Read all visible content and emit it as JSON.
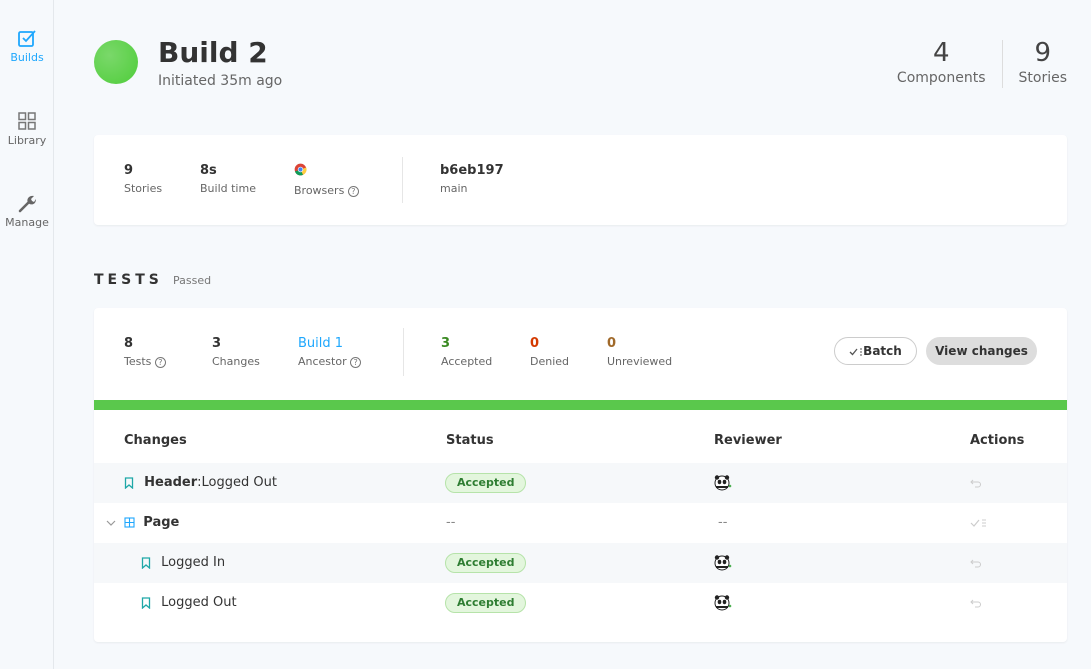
{
  "sidebar": {
    "items": [
      {
        "label": "Builds",
        "icon": "checkbox-icon",
        "active": true
      },
      {
        "label": "Library",
        "icon": "grid-icon",
        "active": false
      },
      {
        "label": "Manage",
        "icon": "wrench-icon",
        "active": false
      }
    ]
  },
  "header": {
    "title": "Build 2",
    "subtitle": "Initiated 35m ago",
    "components_count": "4",
    "components_label": "Components",
    "stories_count": "9",
    "stories_label": "Stories",
    "status_color": "#5ac84c"
  },
  "summary": {
    "stories_value": "9",
    "stories_label": "Stories",
    "build_time_value": "8s",
    "build_time_label": "Build time",
    "browsers_label": "Browsers",
    "browser_icon": "chrome-icon",
    "commit": "b6eb197",
    "branch": "main"
  },
  "tests": {
    "heading": "TESTS",
    "status": "Passed",
    "tests_value": "8",
    "tests_label": "Tests",
    "changes_value": "3",
    "changes_label": "Changes",
    "ancestor_value": "Build 1",
    "ancestor_label": "Ancestor",
    "accepted_value": "3",
    "accepted_label": "Accepted",
    "denied_value": "0",
    "denied_label": "Denied",
    "unreviewed_value": "0",
    "unreviewed_label": "Unreviewed",
    "batch_label": "Batch",
    "view_changes_label": "View changes",
    "progress_fraction": 1.0,
    "colors": {
      "accepted": "#3a8a22",
      "denied": "#d43900",
      "unreviewed": "#a0692a",
      "link": "#1ea7fd",
      "progress": "#5ac84c"
    }
  },
  "table": {
    "headers": {
      "changes": "Changes",
      "status": "Status",
      "reviewer": "Reviewer",
      "actions": "Actions"
    },
    "rows": [
      {
        "component": "Header",
        "separator": ":",
        "story": "Logged Out",
        "status": "Accepted",
        "reviewer_icon": "panda-avatar-icon",
        "action_icon": "undo-icon"
      },
      {
        "component": "Page",
        "status": "--",
        "reviewer": "--",
        "action_icon": "batch-check-icon"
      },
      {
        "story": "Logged In",
        "status": "Accepted",
        "reviewer_icon": "panda-avatar-icon",
        "action_icon": "undo-icon"
      },
      {
        "story": "Logged Out",
        "status": "Accepted",
        "reviewer_icon": "panda-avatar-icon",
        "action_icon": "undo-icon"
      }
    ]
  }
}
